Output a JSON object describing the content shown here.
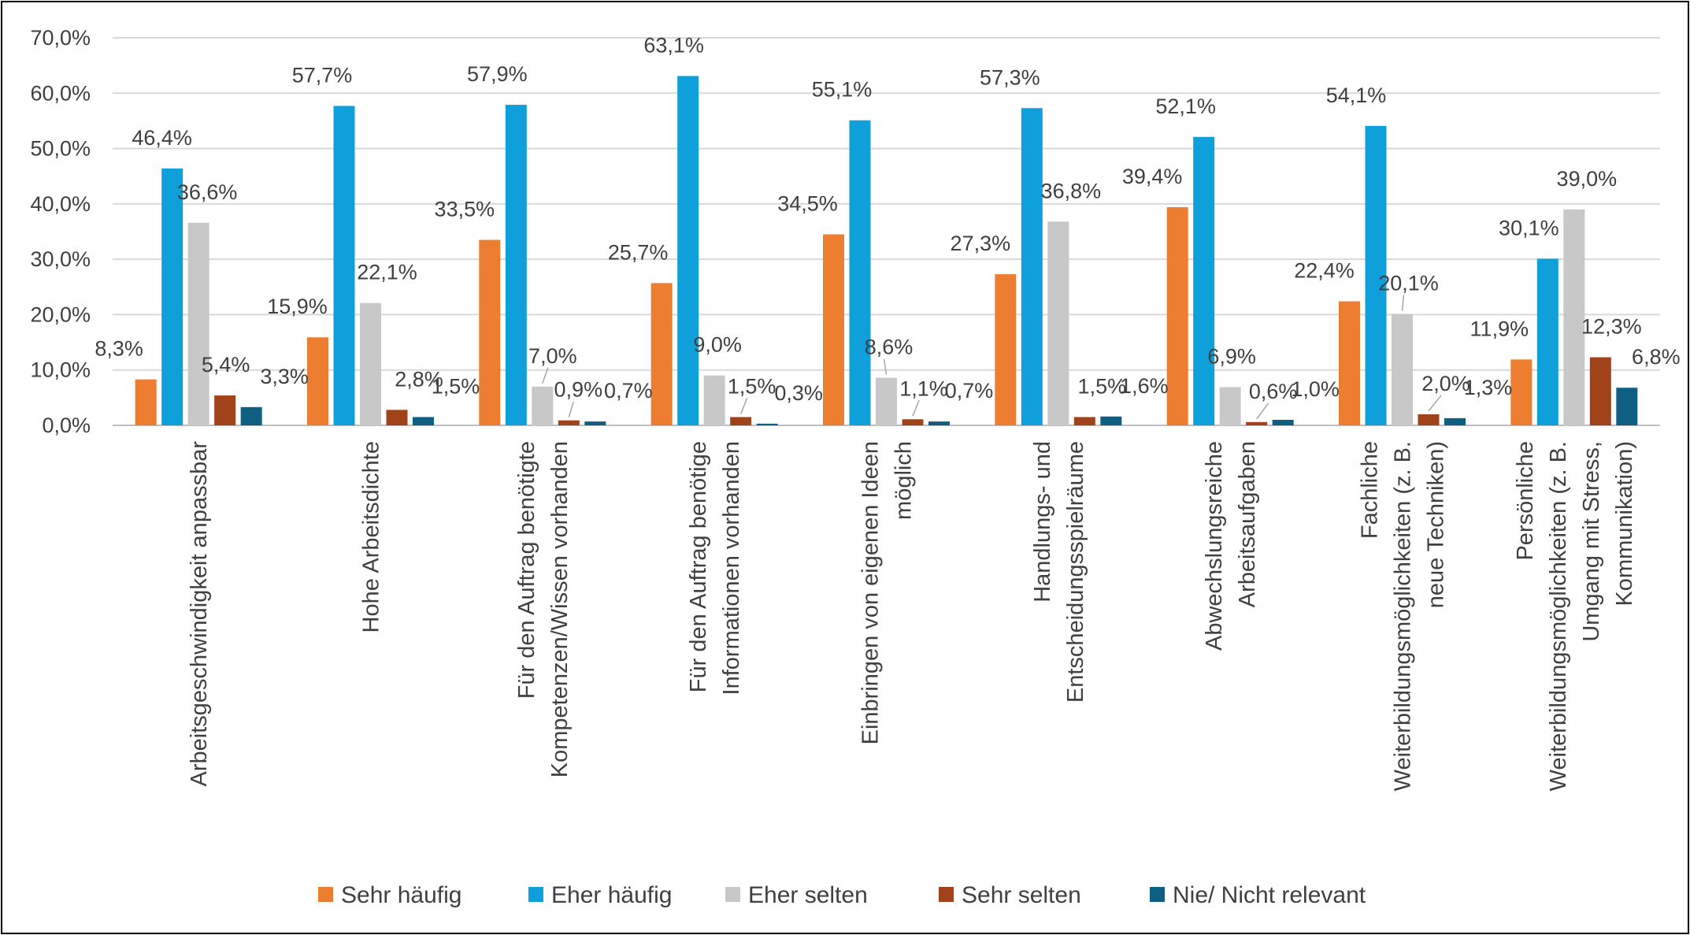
{
  "chart_data": {
    "type": "bar",
    "title": "",
    "xlabel": "",
    "ylabel": "",
    "ylim": [
      0,
      70
    ],
    "y_ticks": [
      "0,0%",
      "10,0%",
      "20,0%",
      "30,0%",
      "40,0%",
      "50,0%",
      "60,0%",
      "70,0%"
    ],
    "grid": true,
    "legend_position": "bottom",
    "categories": [
      [
        "Arbeitsgeschwindigkeit anpassbar"
      ],
      [
        "Hohe Arbeitsdichte"
      ],
      [
        "Für den Auftrag benötigte",
        "Kompetenzen/Wissen vorhanden"
      ],
      [
        "Für den Auftrag benötige",
        "Informationen vorhanden"
      ],
      [
        "Einbringen von eigenen Ideen",
        "möglich"
      ],
      [
        "Handlungs- und",
        "Entscheidungsspielräume"
      ],
      [
        "Abwechslungsreiche",
        "Arbeitsaufgaben"
      ],
      [
        "Fachliche",
        "Weiterbildungsmöglichkeiten (z. B.",
        "neue Techniken)"
      ],
      [
        "Persönliche",
        "Weiterbildungsmöglichkeiten (z. B.",
        "Umgang mit Stress,",
        "Kommunikation)"
      ]
    ],
    "series": [
      {
        "name": "Sehr häufig",
        "color": "#ED7D31",
        "values": [
          8.3,
          15.9,
          33.5,
          25.7,
          34.5,
          27.3,
          39.4,
          22.4,
          11.9
        ],
        "labels": [
          "8,3%",
          "15,9%",
          "33,5%",
          "25,7%",
          "34,5%",
          "27,3%",
          "39,4%",
          "22,4%",
          "11,9%"
        ]
      },
      {
        "name": "Eher häufig",
        "color": "#0FA0DC",
        "values": [
          46.4,
          57.7,
          57.9,
          63.1,
          55.1,
          57.3,
          52.1,
          54.1,
          30.1
        ],
        "labels": [
          "46,4%",
          "57,7%",
          "57,9%",
          "63,1%",
          "55,1%",
          "57,3%",
          "52,1%",
          "54,1%",
          "30,1%"
        ]
      },
      {
        "name": "Eher selten",
        "color": "#C8C8C8",
        "values": [
          36.6,
          22.1,
          7.0,
          9.0,
          8.6,
          36.8,
          6.9,
          20.1,
          39.0
        ],
        "labels": [
          "36,6%",
          "22,1%",
          "7,0%",
          "9,0%",
          "8,6%",
          "36,8%",
          "6,9%",
          "20,1%",
          "39,0%"
        ]
      },
      {
        "name": "Sehr selten",
        "color": "#A0431B",
        "values": [
          5.4,
          2.8,
          0.9,
          1.5,
          1.1,
          1.5,
          0.6,
          2.0,
          12.3
        ],
        "labels": [
          "5,4%",
          "2,8%",
          "0,9%",
          "1,5%",
          "1,1%",
          "1,5%",
          "0,6%",
          "2,0%",
          "12,3%"
        ]
      },
      {
        "name": "Nie/ Nicht relevant",
        "color": "#0F5F82",
        "values": [
          3.3,
          1.5,
          0.7,
          0.3,
          0.7,
          1.6,
          1.0,
          1.3,
          6.8
        ],
        "labels": [
          "3,3%",
          "1,5%",
          "0,7%",
          "0,3%",
          "0,7%",
          "1,6%",
          "1,0%",
          "1,3%",
          "6,8%"
        ]
      }
    ]
  }
}
